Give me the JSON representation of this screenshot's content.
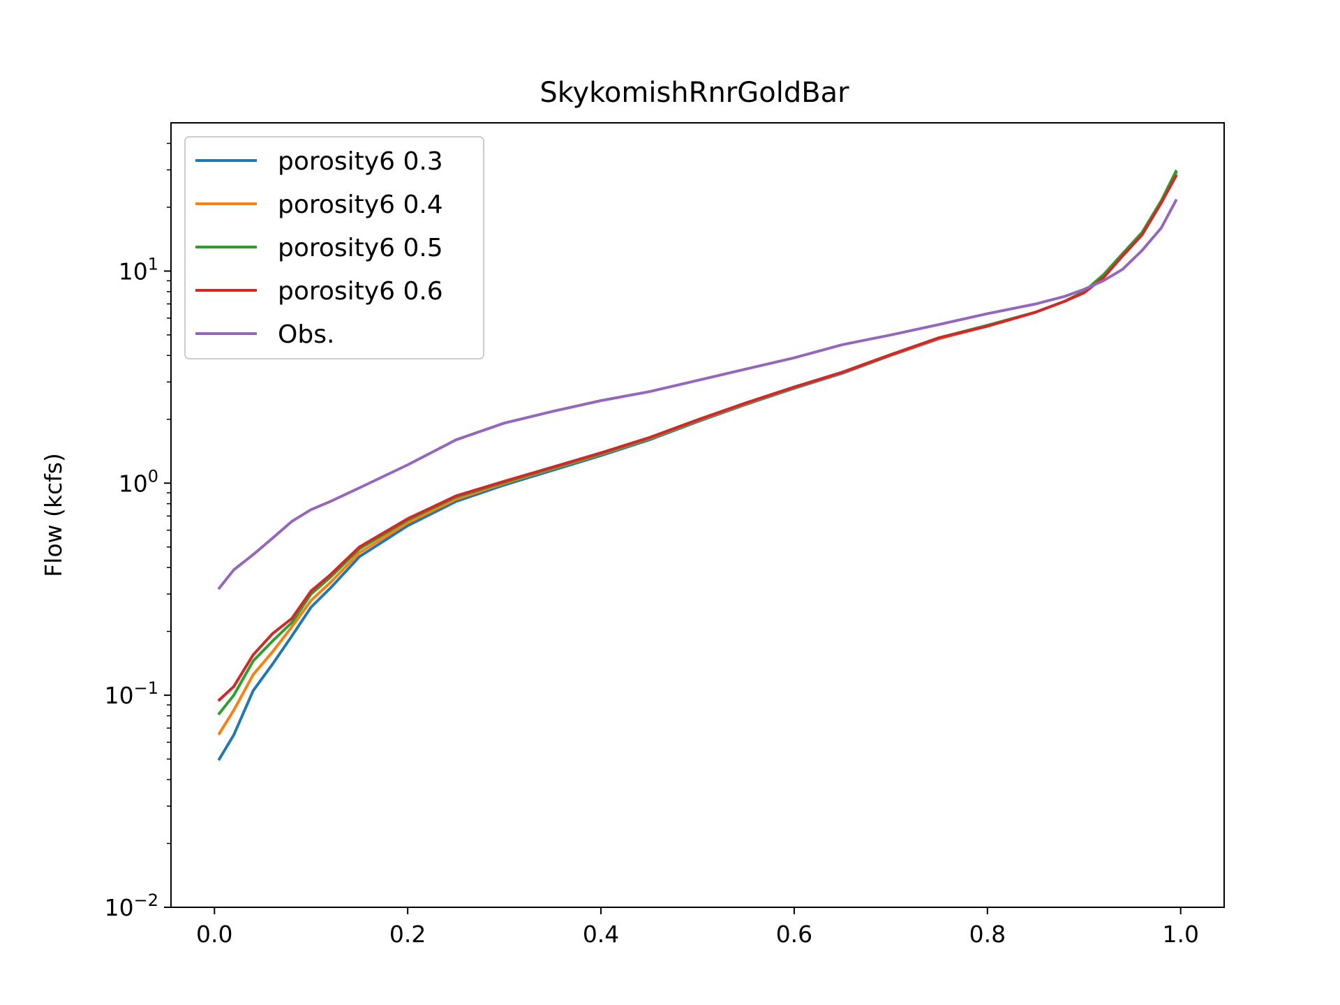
{
  "chart_data": {
    "type": "line",
    "title": "SkykomishRnrGoldBar",
    "xlabel": "",
    "ylabel": "Flow (kcfs)",
    "xlim": [
      -0.045,
      1.045
    ],
    "ylim": [
      0.01,
      50
    ],
    "yscale": "log",
    "x_ticks": [
      {
        "value": 0.0,
        "label": "0.0"
      },
      {
        "value": 0.2,
        "label": "0.2"
      },
      {
        "value": 0.4,
        "label": "0.4"
      },
      {
        "value": 0.6,
        "label": "0.6"
      },
      {
        "value": 0.8,
        "label": "0.8"
      },
      {
        "value": 1.0,
        "label": "1.0"
      }
    ],
    "y_ticks": [
      {
        "value": 0.01,
        "base": "10",
        "exp": "−2"
      },
      {
        "value": 0.1,
        "base": "10",
        "exp": "−1"
      },
      {
        "value": 1,
        "base": "10",
        "exp": "0"
      },
      {
        "value": 10,
        "base": "10",
        "exp": "1"
      }
    ],
    "grid": false,
    "legend_position": "top-left",
    "x": [
      0.005,
      0.02,
      0.04,
      0.06,
      0.08,
      0.1,
      0.12,
      0.15,
      0.2,
      0.25,
      0.3,
      0.35,
      0.4,
      0.45,
      0.5,
      0.55,
      0.6,
      0.65,
      0.7,
      0.75,
      0.8,
      0.85,
      0.88,
      0.9,
      0.92,
      0.94,
      0.96,
      0.98,
      0.995
    ],
    "series": [
      {
        "name": "porosity6 0.3",
        "color": "#1f77b4",
        "values": [
          0.05,
          0.065,
          0.105,
          0.14,
          0.19,
          0.26,
          0.32,
          0.45,
          0.63,
          0.82,
          0.98,
          1.15,
          1.35,
          1.6,
          1.95,
          2.35,
          2.8,
          3.3,
          4.0,
          4.8,
          5.5,
          6.4,
          7.2,
          8.0,
          9.5,
          12.0,
          15.0,
          21.0,
          29.0
        ]
      },
      {
        "name": "porosity6 0.4",
        "color": "#ff7f0e",
        "values": [
          0.066,
          0.085,
          0.125,
          0.16,
          0.21,
          0.28,
          0.34,
          0.47,
          0.65,
          0.84,
          1.0,
          1.17,
          1.37,
          1.62,
          1.97,
          2.37,
          2.82,
          3.32,
          4.02,
          4.82,
          5.5,
          6.4,
          7.2,
          8.0,
          9.5,
          12.0,
          15.0,
          21.0,
          28.5
        ]
      },
      {
        "name": "porosity6 0.5",
        "color": "#2ca02c",
        "values": [
          0.082,
          0.1,
          0.145,
          0.18,
          0.22,
          0.3,
          0.36,
          0.49,
          0.67,
          0.86,
          1.01,
          1.18,
          1.38,
          1.63,
          1.98,
          2.38,
          2.83,
          3.33,
          4.03,
          4.85,
          5.55,
          6.4,
          7.2,
          8.0,
          9.6,
          12.1,
          15.2,
          21.5,
          29.5
        ]
      },
      {
        "name": "porosity6 0.6",
        "color": "#d62728",
        "values": [
          0.095,
          0.11,
          0.155,
          0.195,
          0.23,
          0.31,
          0.37,
          0.5,
          0.68,
          0.87,
          1.02,
          1.19,
          1.39,
          1.64,
          1.99,
          2.39,
          2.84,
          3.34,
          4.04,
          4.85,
          5.5,
          6.4,
          7.2,
          7.9,
          9.3,
          11.8,
          14.8,
          21.0,
          28.0
        ]
      },
      {
        "name": "Obs.",
        "color": "#9467bd",
        "values": [
          0.32,
          0.39,
          0.46,
          0.55,
          0.66,
          0.75,
          0.82,
          0.95,
          1.22,
          1.6,
          1.92,
          2.18,
          2.45,
          2.7,
          3.05,
          3.45,
          3.9,
          4.5,
          5.0,
          5.6,
          6.3,
          7.0,
          7.6,
          8.2,
          9.0,
          10.2,
          12.5,
          16.0,
          21.5
        ]
      }
    ]
  }
}
